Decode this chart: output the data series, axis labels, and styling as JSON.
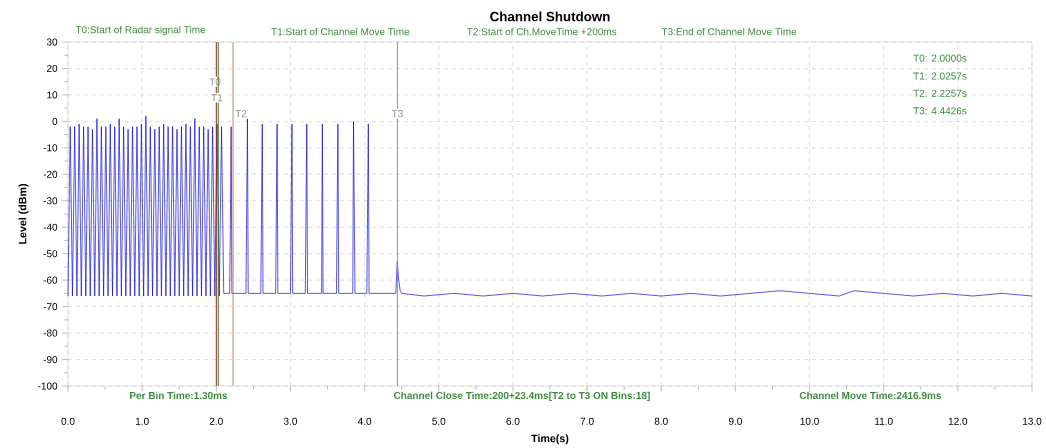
{
  "chart_data": {
    "type": "line",
    "title": "Channel Shutdown",
    "xlabel": "Time(s)",
    "ylabel": "Level (dBm)",
    "xlim": [
      0,
      13
    ],
    "ylim": [
      -100,
      30
    ],
    "xticks": [
      {
        "value": 0,
        "label": "0.0"
      },
      {
        "value": 1,
        "label": "1.0"
      },
      {
        "value": 2,
        "label": "2.0"
      },
      {
        "value": 3,
        "label": "3.0"
      },
      {
        "value": 4,
        "label": "4.0"
      },
      {
        "value": 5,
        "label": "5.0"
      },
      {
        "value": 6,
        "label": "6.0"
      },
      {
        "value": 7,
        "label": "7.0"
      },
      {
        "value": 8,
        "label": "8.0"
      },
      {
        "value": 9,
        "label": "9.0"
      },
      {
        "value": 10,
        "label": "10.0"
      },
      {
        "value": 11,
        "label": "11.0"
      },
      {
        "value": 12,
        "label": "12.0"
      },
      {
        "value": 13,
        "label": "13.0"
      }
    ],
    "yticks": [
      -100,
      -90,
      -80,
      -70,
      -60,
      -50,
      -40,
      -30,
      -20,
      -10,
      0,
      10,
      20,
      30
    ],
    "grid": true,
    "series": [
      {
        "color": "#0000e0",
        "x": [
          0.0,
          0.03,
          0.06,
          0.09,
          0.12,
          0.15,
          0.18,
          0.21,
          0.24,
          0.27,
          0.3,
          0.33,
          0.36,
          0.39,
          0.42,
          0.45,
          0.48,
          0.51,
          0.54,
          0.57,
          0.6,
          0.63,
          0.66,
          0.69,
          0.72,
          0.75,
          0.78,
          0.81,
          0.84,
          0.87,
          0.9,
          0.93,
          0.96,
          0.99,
          1.02,
          1.05,
          1.08,
          1.11,
          1.14,
          1.17,
          1.2,
          1.23,
          1.26,
          1.29,
          1.32,
          1.35,
          1.38,
          1.41,
          1.44,
          1.47,
          1.5,
          1.53,
          1.56,
          1.59,
          1.62,
          1.65,
          1.68,
          1.71,
          1.74,
          1.77,
          1.8,
          1.83,
          1.86,
          1.89,
          1.92,
          1.95,
          1.98,
          2.01,
          2.04,
          2.07,
          2.1,
          2.18,
          2.19,
          2.2,
          2.21,
          2.4,
          2.42,
          2.43,
          2.6,
          2.62,
          2.63,
          2.8,
          2.82,
          2.83,
          3.0,
          3.02,
          3.03,
          3.2,
          3.22,
          3.23,
          3.42,
          3.43,
          3.44,
          3.62,
          3.64,
          3.65,
          3.84,
          3.85,
          3.87,
          4.03,
          4.05,
          4.06,
          4.42,
          4.44,
          4.46,
          4.48,
          4.5,
          4.8,
          5.2,
          5.6,
          6.0,
          6.4,
          6.8,
          7.2,
          7.6,
          8.0,
          8.4,
          8.8,
          9.2,
          9.6,
          10.0,
          10.4,
          10.6,
          11.0,
          11.4,
          11.8,
          12.2,
          12.6,
          13.0
        ],
        "values": [
          -66,
          -2,
          -66,
          -2,
          -66,
          -1,
          -66,
          -2,
          -66,
          -2,
          -66,
          -3,
          -66,
          1,
          -66,
          -2,
          -66,
          -2,
          -66,
          -1,
          -66,
          -2,
          -66,
          1,
          -66,
          -2,
          -66,
          -3,
          -66,
          -2,
          -66,
          -2,
          -66,
          -1,
          -66,
          2,
          -66,
          -2,
          -66,
          -3,
          -66,
          -2,
          -66,
          -1,
          -66,
          -2,
          -66,
          -2,
          -66,
          -3,
          -66,
          -2,
          -66,
          -1,
          -66,
          -2,
          -66,
          1,
          -66,
          -2,
          -66,
          -2,
          -66,
          -3,
          -66,
          -2,
          -66,
          -1,
          -66,
          -2,
          -65,
          -65,
          -38,
          -2,
          -65,
          -65,
          1,
          -65,
          -65,
          -1,
          -65,
          -65,
          -1,
          -65,
          -65,
          -1,
          -65,
          -65,
          -1,
          -65,
          -65,
          -1,
          -65,
          -65,
          -1,
          -65,
          -65,
          0,
          -65,
          -65,
          -1,
          -65,
          -65,
          -53,
          -60,
          -64,
          -65,
          -66,
          -65,
          -66,
          -65,
          -66,
          -65,
          -66,
          -65,
          -66,
          -65,
          -66,
          -65,
          -64,
          -65,
          -66,
          -64,
          -65,
          -66,
          -65,
          -66,
          -65,
          -66
        ]
      }
    ],
    "ref_lines": [
      {
        "axis": "x",
        "value": 2.0,
        "label": "T0",
        "color": "#8b2500"
      },
      {
        "axis": "x",
        "value": 2.0257,
        "label": "T1",
        "color": "#2e6b1e"
      },
      {
        "axis": "x",
        "value": 2.2257,
        "label": "T2",
        "color": "#c8783c"
      },
      {
        "axis": "x",
        "value": 4.4426,
        "label": "T3",
        "color": "#cc66cc"
      }
    ],
    "annotations": [
      "T0:Start of Radar signal Time",
      "T1:Start of Channel Move Time",
      "T2:Start of Ch.MoveTime +200ms",
      "T3:End of Channel Move Time",
      "T0: 2.0000s",
      "T1: 2.0257s",
      "T2: 2.2257s",
      "T3: 4.4426s",
      "Per Bin Time:1.30ms",
      "Channel Close Time:200+23.4ms[T2 to T3 ON Bins:18]",
      "Channel Move Time:2416.9ms"
    ]
  }
}
